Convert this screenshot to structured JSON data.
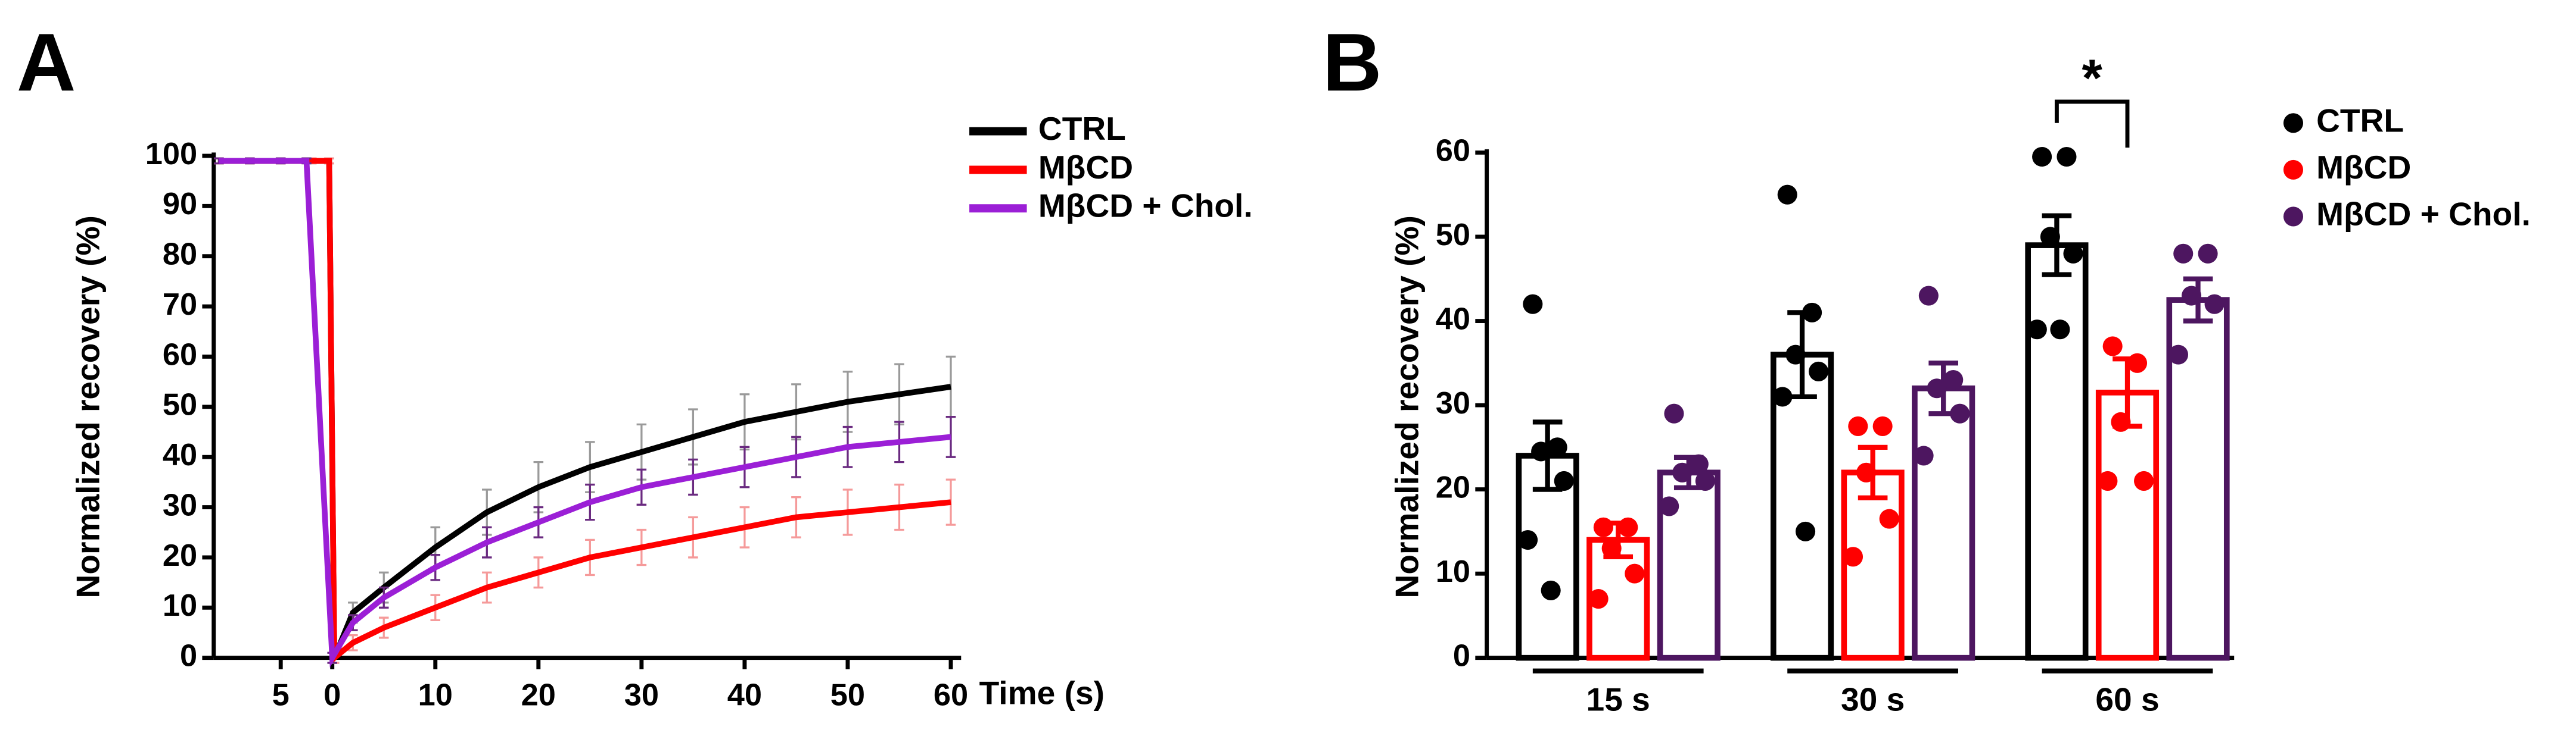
{
  "chart_data": [
    {
      "type": "line",
      "panel": "A",
      "xlabel": "Time (s)",
      "ylabel": "Normalized recovery (%)",
      "xlim": [
        -11.5,
        61
      ],
      "ylim": [
        0,
        100
      ],
      "xticks": [
        {
          "value": -5,
          "label": "5"
        },
        0,
        10,
        20,
        30,
        40,
        50,
        60
      ],
      "yticks": [
        0,
        10,
        20,
        30,
        40,
        50,
        60,
        70,
        80,
        90,
        100
      ],
      "series": [
        {
          "name": "CTRL",
          "color": "#000000",
          "error_color": "#9a9a9a",
          "x": [
            -11,
            -8,
            -5,
            -2,
            -0.3,
            0.2,
            2,
            5,
            10,
            15,
            20,
            25,
            30,
            35,
            40,
            45,
            50,
            55,
            60
          ],
          "values": [
            99,
            99,
            99,
            99,
            99,
            0,
            9,
            14,
            22,
            29,
            34,
            38,
            41,
            44,
            47,
            49,
            51,
            52.5,
            54
          ],
          "errors": [
            0.5,
            0.5,
            0.5,
            0.5,
            0.5,
            1,
            2,
            3,
            4,
            4.5,
            5,
            5,
            5.5,
            5.5,
            5.5,
            5.5,
            6,
            6,
            6
          ]
        },
        {
          "name": "MβCD",
          "color": "#ff0000",
          "error_color": "#f59a9a",
          "x": [
            -11,
            -8,
            -5,
            -2,
            -0.3,
            0.2,
            2,
            5,
            10,
            15,
            20,
            25,
            30,
            35,
            40,
            45,
            50,
            55,
            60
          ],
          "values": [
            99,
            99,
            99,
            99,
            99,
            0,
            3,
            6,
            10,
            14,
            17,
            20,
            22,
            24,
            26,
            28,
            29,
            30,
            31
          ],
          "errors": [
            0.5,
            0.5,
            0.5,
            0.5,
            0.5,
            1,
            1.5,
            2,
            2.5,
            3,
            3,
            3.5,
            3.5,
            4,
            4,
            4,
            4.5,
            4.5,
            4.5
          ]
        },
        {
          "name": "MβCD + Chol.",
          "color": "#9b1fd6",
          "error_color": "#6a2a80",
          "x": [
            -11,
            -8,
            -5,
            -2.5,
            0,
            2,
            5,
            10,
            15,
            20,
            25,
            30,
            35,
            40,
            45,
            50,
            55,
            60
          ],
          "values": [
            99,
            99,
            99,
            99,
            0,
            7,
            12,
            18,
            23,
            27,
            31,
            34,
            36,
            38,
            40,
            42,
            43,
            44
          ],
          "errors": [
            0.5,
            0.5,
            0.5,
            0.5,
            1,
            1.5,
            2,
            2.5,
            3,
            3,
            3.5,
            3.5,
            3.5,
            4,
            4,
            4,
            4,
            4
          ]
        }
      ]
    },
    {
      "type": "bar",
      "panel": "B",
      "ylabel": "Normalized recovery (%)",
      "categories": [
        "15 s",
        "30 s",
        "60 s"
      ],
      "ylim": [
        0,
        60
      ],
      "yticks": [
        0,
        10,
        20,
        30,
        40,
        50,
        60
      ],
      "series": [
        {
          "name": "CTRL",
          "color": "#000000",
          "values": [
            24,
            36,
            49
          ],
          "errors": [
            4,
            5,
            3.5
          ],
          "points": [
            [
              42,
              25,
              24.5,
              21,
              14,
              8
            ],
            [
              55,
              41,
              36,
              34,
              31,
              15
            ],
            [
              59.5,
              59.5,
              50,
              48,
              39,
              39
            ]
          ]
        },
        {
          "name": "MβCD",
          "color": "#ff0000",
          "values": [
            14,
            22,
            31.5
          ],
          "errors": [
            2,
            3,
            4
          ],
          "points": [
            [
              15.5,
              15.5,
              13,
              10,
              7
            ],
            [
              27.5,
              27.5,
              22,
              16.5,
              12
            ],
            [
              37,
              35,
              28,
              21,
              21
            ]
          ]
        },
        {
          "name": "MβCD + Chol.",
          "color": "#4d1660",
          "values": [
            22,
            32,
            42.5
          ],
          "errors": [
            1.8,
            3,
            2.5
          ],
          "points": [
            [
              29,
              23,
              22,
              21,
              18
            ],
            [
              43,
              33,
              32,
              29,
              24
            ],
            [
              48,
              48,
              43,
              42,
              36
            ]
          ]
        }
      ],
      "annotation": "*"
    }
  ]
}
